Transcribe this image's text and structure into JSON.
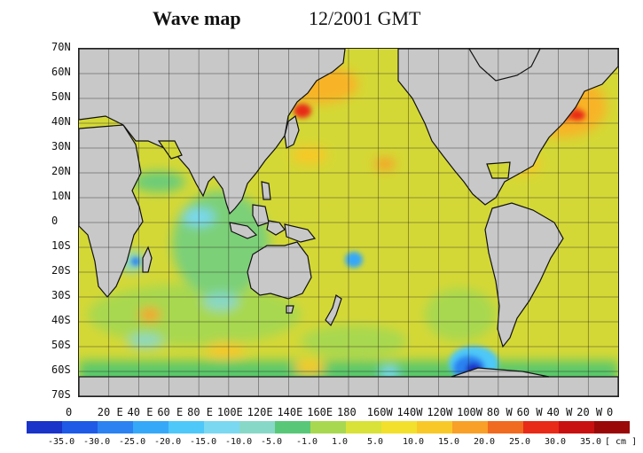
{
  "header": {
    "title": "Wave map",
    "date": "12/2001 GMT"
  },
  "map": {
    "lat_labels": [
      "70N",
      "60N",
      "50N",
      "40N",
      "30N",
      "20N",
      "10N",
      "0",
      "10S",
      "20S",
      "30S",
      "40S",
      "50S",
      "60S",
      "70S"
    ],
    "lon_labels": [
      "0",
      "20 E",
      "40 E",
      "60 E",
      "80 E",
      "100E",
      "120E",
      "140E",
      "160E",
      "180",
      "160W",
      "140W",
      "120W",
      "100W",
      "80 W",
      "60 W",
      "40 W",
      "20 W",
      "0"
    ],
    "land_color": "#c8c8c8",
    "ocean_base_color": "#d4d836"
  },
  "colorbar": {
    "unit": "[ cm ]",
    "labels": [
      "-35.0",
      "-30.0",
      "-25.0",
      "-20.0",
      "-15.0",
      "-10.0",
      "-5.0",
      "-1.0",
      "1.0",
      "5.0",
      "10.0",
      "15.0",
      "20.0",
      "25.0",
      "30.0",
      "35.0"
    ],
    "colors": [
      "#1a33c8",
      "#1e5ae6",
      "#2c82f0",
      "#36a8f8",
      "#4ec8f8",
      "#7ad8f0",
      "#88d8c8",
      "#58c878",
      "#a8d850",
      "#d8e238",
      "#f2e02c",
      "#f8c828",
      "#f8a028",
      "#f06a20",
      "#e82a18",
      "#c81010",
      "#9a0808"
    ]
  }
}
